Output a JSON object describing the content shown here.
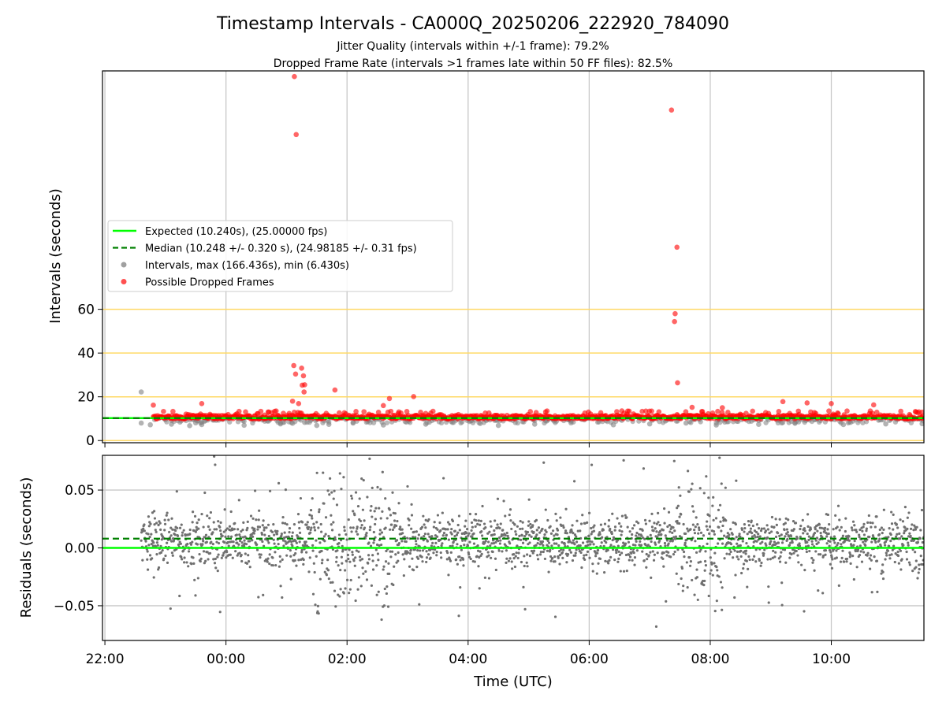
{
  "chart_data": {
    "title": "Timestamp Intervals - CA000Q_20250206_222920_784090",
    "subtitle_lines": [
      "Jitter Quality (intervals within +/-1 frame): 79.2%",
      "Dropped Frame Rate (intervals >1 frames late within 50 FF files): 82.5%"
    ],
    "x_axis": {
      "label": "Time (UTC)",
      "range_hours_since_22": [
        -0.04,
        13.53
      ],
      "ticks": [
        {
          "h": 0,
          "label": "22:00"
        },
        {
          "h": 2,
          "label": "00:00"
        },
        {
          "h": 4,
          "label": "02:00"
        },
        {
          "h": 6,
          "label": "04:00"
        },
        {
          "h": 8,
          "label": "06:00"
        },
        {
          "h": 10,
          "label": "08:00"
        },
        {
          "h": 12,
          "label": "10:00"
        }
      ]
    },
    "panels": [
      {
        "id": "intervals",
        "type": "scatter",
        "ylabel": "Intervals (seconds)",
        "ylim": [
          -1,
          169
        ],
        "yticks": [
          0,
          20,
          40,
          60
        ],
        "horizontal_guides": {
          "values": [
            0,
            20,
            40,
            60
          ],
          "color": "#ffd966"
        },
        "expected_line": {
          "value": 10.24,
          "color": "#00ff00"
        },
        "median_line": {
          "value": 10.248,
          "color": "#008000",
          "dashed": true
        },
        "series": [
          {
            "name": "Intervals, max (166.436s), min (6.430s)",
            "color": "#808080",
            "points": [
              [
                0.6,
                22.2
              ],
              [
                0.6,
                8.0
              ],
              [
                0.75,
                7.2
              ],
              [
                1.1,
                7.5
              ],
              [
                1.4,
                6.8
              ],
              [
                1.5,
                8.1
              ],
              [
                1.6,
                7.3
              ],
              [
                2.3,
                7.0
              ],
              [
                2.9,
                7.6
              ],
              [
                3.1,
                7.9
              ],
              [
                3.3,
                8.3
              ],
              [
                3.5,
                6.9
              ],
              [
                3.7,
                7.4
              ],
              [
                4.1,
                8.0
              ],
              [
                4.6,
                7.1
              ],
              [
                5.3,
                7.5
              ],
              [
                6.2,
                7.8
              ],
              [
                6.5,
                6.9
              ],
              [
                7.1,
                7.5
              ],
              [
                7.7,
                8.1
              ],
              [
                8.4,
                7.2
              ],
              [
                9.0,
                7.6
              ],
              [
                9.6,
                8.0
              ],
              [
                10.1,
                7.1
              ],
              [
                10.8,
                7.4
              ],
              [
                11.4,
                7.9
              ],
              [
                12.2,
                7.3
              ],
              [
                12.9,
                7.6
              ],
              [
                13.5,
                7.7
              ]
            ]
          },
          {
            "name": "Possible Dropped Frames",
            "color": "#ff0000",
            "points": [
              [
                3.13,
                166.4
              ],
              [
                3.16,
                139.9
              ],
              [
                9.36,
                151.1
              ],
              [
                9.45,
                88.4
              ],
              [
                9.42,
                58.0
              ],
              [
                9.41,
                54.4
              ],
              [
                9.46,
                26.4
              ],
              [
                3.12,
                34.3
              ],
              [
                3.25,
                33.1
              ],
              [
                3.15,
                30.4
              ],
              [
                3.28,
                29.6
              ],
              [
                3.26,
                25.3
              ],
              [
                3.3,
                25.5
              ],
              [
                3.29,
                22.2
              ],
              [
                3.1,
                18.0
              ],
              [
                3.2,
                16.9
              ],
              [
                3.8,
                23.1
              ],
              [
                4.7,
                19.2
              ],
              [
                5.1,
                20.1
              ],
              [
                4.6,
                16.0
              ],
              [
                1.6,
                16.9
              ],
              [
                0.8,
                16.2
              ],
              [
                9.7,
                15.2
              ],
              [
                10.2,
                15.0
              ],
              [
                11.2,
                17.8
              ],
              [
                11.6,
                17.2
              ],
              [
                12.0,
                16.9
              ],
              [
                12.7,
                16.3
              ],
              [
                13.5,
                13.0
              ]
            ]
          },
          {
            "name": "",
            "color": "#ff0000",
            "dense_band": {
              "from_h": 0.8,
              "to_h": 13.53,
              "y_min": 9.6,
              "y_max": 14.0,
              "base": 10.3
            }
          }
        ]
      },
      {
        "id": "residuals",
        "type": "scatter",
        "ylabel": "Residuals (seconds)",
        "ylim": [
          -0.08,
          0.08
        ],
        "yticks": [
          -0.05,
          0.0,
          0.05
        ],
        "ytick_labels": [
          "−0.05",
          "0.00",
          "0.05"
        ],
        "expected_line": {
          "value": 0.0,
          "color": "#00ff00"
        },
        "median_line": {
          "value": 0.008,
          "color": "#008000",
          "dashed": true
        },
        "series": [
          {
            "name": "",
            "color": "#707070",
            "dense_band": {
              "from_h": 0.6,
              "to_h": 13.53,
              "center": 0.006,
              "spread": 0.02
            }
          }
        ]
      }
    ],
    "legend": {
      "placement": "center-left of upper panel",
      "entries": [
        {
          "label": "Expected (10.240s), (25.00000 fps)",
          "kind": "line",
          "color": "#00ff00"
        },
        {
          "label": "Median (10.248 +/- 0.320 s), (24.98185 +/- 0.31 fps)",
          "kind": "dashed",
          "color": "#008000"
        },
        {
          "label": "Intervals, max (166.436s), min (6.430s)",
          "kind": "dot",
          "color": "#a0a0a0"
        },
        {
          "label": "Possible Dropped Frames",
          "kind": "dot",
          "color": "#ff5050"
        }
      ]
    },
    "grid": true
  }
}
